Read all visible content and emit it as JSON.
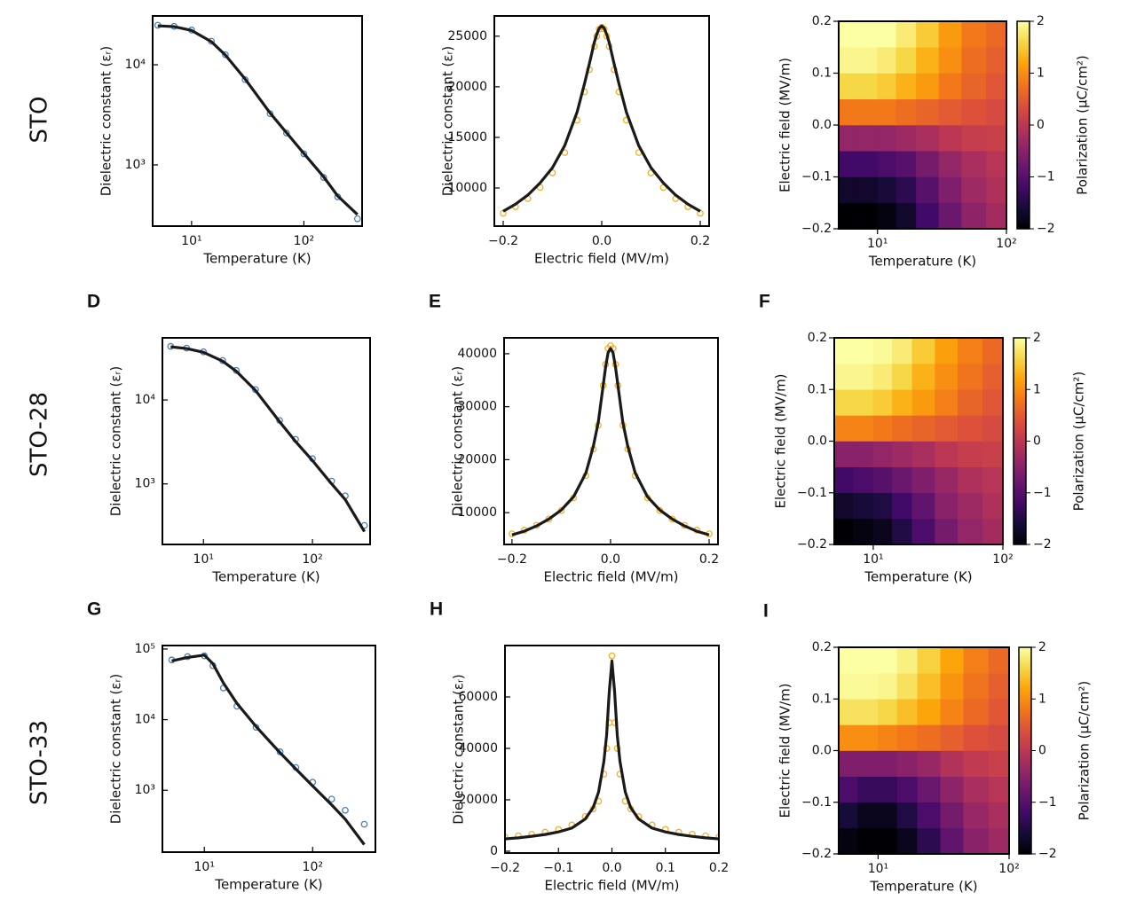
{
  "row_labels": [
    "STO",
    "STO-28",
    "STO-33"
  ],
  "chart_data": [
    {
      "type": "line",
      "xscale": "log",
      "yscale": "log",
      "xlabel": "Temperature (K)",
      "ylabel": "Dielectric constant (εᵣ)",
      "x": [
        5,
        7,
        10,
        15,
        20,
        30,
        50,
        70,
        100,
        150,
        200,
        300
      ],
      "series": [
        {
          "style": "markers",
          "color": "#4a7ebb",
          "values": [
            24800,
            24200,
            22200,
            17200,
            12600,
            7100,
            3250,
            2080,
            1290,
            750,
            480,
            290
          ]
        },
        {
          "style": "line",
          "color": "#1a1a1a",
          "values": [
            24500,
            24000,
            22000,
            17000,
            12500,
            7200,
            3300,
            2100,
            1300,
            760,
            490,
            320
          ]
        }
      ],
      "xlim": [
        4.5,
        330
      ],
      "ylim": [
        245,
        30700
      ],
      "xticks": [
        {
          "value": 10,
          "label": "10¹"
        },
        {
          "value": 100,
          "label": "10²"
        }
      ],
      "yticks": [
        {
          "value": 1000,
          "label": "10³"
        },
        {
          "value": 10000,
          "label": "10⁴"
        }
      ]
    },
    {
      "type": "line",
      "xlabel": "Electric field (MV/m)",
      "ylabel": "Dielectric constant (εᵣ)",
      "x": [
        -0.2,
        -0.175,
        -0.15,
        -0.125,
        -0.1,
        -0.075,
        -0.05,
        -0.035,
        -0.025,
        -0.015,
        -0.01,
        -0.005,
        0,
        0.005,
        0.01,
        0.015,
        0.025,
        0.035,
        0.05,
        0.075,
        0.1,
        0.125,
        0.15,
        0.175,
        0.2
      ],
      "series": [
        {
          "style": "markers",
          "color": "#f5b022",
          "values": [
            7500,
            8150,
            8950,
            10050,
            11500,
            13500,
            16700,
            19500,
            21700,
            24000,
            25000,
            25700,
            25900,
            25700,
            25000,
            24000,
            21700,
            19500,
            16700,
            13500,
            11500,
            10050,
            8950,
            8150,
            7500
          ]
        },
        {
          "style": "line",
          "color": "#1a1a1a",
          "values": [
            7700,
            8400,
            9300,
            10500,
            12000,
            14200,
            17500,
            20300,
            22300,
            24400,
            25200,
            25800,
            26000,
            25800,
            25200,
            24400,
            22300,
            20300,
            17500,
            14200,
            12000,
            10500,
            9300,
            8400,
            7700
          ]
        }
      ],
      "xlim": [
        -0.218,
        0.218
      ],
      "ylim": [
        6230,
        27000
      ],
      "xticks": [
        {
          "value": -0.2,
          "label": "−0.2"
        },
        {
          "value": 0,
          "label": "0.0"
        },
        0.2
      ],
      "yticks": [
        10000,
        15000,
        20000,
        25000
      ]
    },
    {
      "type": "heatmap",
      "xscale": "log",
      "colormap": "inferno",
      "xlabel": "Temperature (K)",
      "ylabel": "Electric field (MV/m)",
      "colorbar_label": "Polarization (μC/cm²)",
      "xbins": [
        5,
        7,
        10,
        14,
        20,
        30,
        45,
        70,
        100
      ],
      "ybins": [
        -0.2,
        -0.15,
        -0.1,
        -0.05,
        0,
        0.05,
        0.1,
        0.15,
        0.2
      ],
      "z": [
        [
          -2.0,
          -2.0,
          -1.9,
          -1.7,
          -1.2,
          -0.8,
          -0.45,
          -0.25
        ],
        [
          -1.7,
          -1.7,
          -1.6,
          -1.4,
          -1.0,
          -0.6,
          -0.3,
          -0.15
        ],
        [
          -1.2,
          -1.2,
          -1.1,
          -1.0,
          -0.7,
          -0.4,
          -0.2,
          -0.05
        ],
        [
          -0.4,
          -0.4,
          -0.4,
          -0.3,
          -0.2,
          0,
          0.1,
          0.15
        ],
        [
          0.8,
          0.8,
          0.8,
          0.7,
          0.6,
          0.5,
          0.4,
          0.3
        ],
        [
          1.6,
          1.6,
          1.5,
          1.3,
          1.1,
          0.8,
          0.6,
          0.45
        ],
        [
          1.9,
          1.9,
          1.8,
          1.6,
          1.3,
          1.0,
          0.7,
          0.55
        ],
        [
          2.0,
          2.0,
          2.0,
          1.8,
          1.5,
          1.1,
          0.8,
          0.65
        ]
      ],
      "xlim": [
        5,
        100
      ],
      "ylim": [
        -0.2,
        0.2
      ],
      "zlim": [
        -2,
        2
      ],
      "xticks": [
        {
          "value": 10,
          "label": "10¹"
        },
        {
          "value": 100,
          "label": "10²"
        }
      ],
      "yticks": [
        {
          "value": -0.2,
          "label": "−0.2"
        },
        {
          "value": -0.1,
          "label": "−0.1"
        },
        {
          "value": 0,
          "label": "0.0"
        },
        0.1,
        0.2
      ],
      "zticks": [
        {
          "value": -2,
          "label": "−2"
        },
        {
          "value": -1,
          "label": "−1"
        },
        0,
        1,
        2
      ]
    },
    {
      "type": "line",
      "panel": "D",
      "xscale": "log",
      "yscale": "log",
      "xlabel": "Temperature (K)",
      "ylabel": "Dielectric constant (εᵣ)",
      "x": [
        5,
        7,
        10,
        15,
        20,
        30,
        50,
        70,
        100,
        150,
        200,
        300
      ],
      "series": [
        {
          "style": "markers",
          "color": "#4a7ebb",
          "values": [
            43500,
            41500,
            37500,
            29500,
            22500,
            13300,
            5700,
            3400,
            2000,
            1080,
            720,
            320
          ]
        },
        {
          "style": "line",
          "color": "#1a1a1a",
          "values": [
            43000,
            41000,
            37000,
            29000,
            22000,
            13000,
            5500,
            3200,
            1900,
            1000,
            650,
            270
          ]
        }
      ],
      "xlim": [
        4.2,
        338
      ],
      "ylim": [
        190,
        55000
      ],
      "xticks": [
        {
          "value": 10,
          "label": "10¹"
        },
        {
          "value": 100,
          "label": "10²"
        }
      ],
      "yticks": [
        {
          "value": 1000,
          "label": "10³"
        },
        {
          "value": 10000,
          "label": "10⁴"
        }
      ]
    },
    {
      "type": "line",
      "panel": "E",
      "xlabel": "Electric field (MV/m)",
      "ylabel": "Dielectric constant (εᵣ)",
      "x": [
        -0.2,
        -0.175,
        -0.15,
        -0.125,
        -0.1,
        -0.075,
        -0.05,
        -0.035,
        -0.025,
        -0.015,
        -0.01,
        -0.005,
        0,
        0.005,
        0.01,
        0.015,
        0.025,
        0.035,
        0.05,
        0.075,
        0.1,
        0.125,
        0.15,
        0.175,
        0.2
      ],
      "series": [
        {
          "style": "markers",
          "color": "#f5b022",
          "values": [
            6000,
            6700,
            7600,
            8800,
            10400,
            12800,
            17000,
            22000,
            26500,
            34000,
            38000,
            41000,
            41500,
            41000,
            38000,
            34000,
            26500,
            22000,
            17000,
            12800,
            10400,
            8800,
            7600,
            6700,
            6000
          ]
        },
        {
          "style": "line",
          "color": "#1a1a1a",
          "values": [
            5800,
            6500,
            7500,
            8800,
            10500,
            13000,
            17500,
            22500,
            27000,
            34000,
            37500,
            40200,
            41000,
            40200,
            37500,
            34000,
            27000,
            22500,
            17500,
            13000,
            10500,
            8800,
            7500,
            6500,
            5800
          ]
        }
      ],
      "xlim": [
        -0.216,
        0.218
      ],
      "ylim": [
        4000,
        43000
      ],
      "xticks": [
        {
          "value": -0.2,
          "label": "−0.2"
        },
        {
          "value": 0,
          "label": "0.0"
        },
        0.2
      ],
      "yticks": [
        10000,
        20000,
        30000,
        40000
      ]
    },
    {
      "type": "heatmap",
      "panel": "F",
      "xscale": "log",
      "colormap": "inferno",
      "xlabel": "Temperature (K)",
      "ylabel": "Electric field (MV/m)",
      "colorbar_label": "Polarization (μC/cm²)",
      "xbins": [
        5,
        7,
        10,
        14,
        20,
        30,
        45,
        70,
        100
      ],
      "ybins": [
        -0.2,
        -0.15,
        -0.1,
        -0.05,
        0,
        0.05,
        0.1,
        0.15,
        0.2
      ],
      "z": [
        [
          -2.0,
          -1.9,
          -1.8,
          -1.5,
          -1.1,
          -0.7,
          -0.4,
          -0.25
        ],
        [
          -1.7,
          -1.6,
          -1.5,
          -1.2,
          -0.9,
          -0.5,
          -0.3,
          -0.15
        ],
        [
          -1.2,
          -1.1,
          -1.0,
          -0.8,
          -0.6,
          -0.35,
          -0.15,
          -0.05
        ],
        [
          -0.5,
          -0.5,
          -0.4,
          -0.3,
          -0.2,
          0,
          0.1,
          0.15
        ],
        [
          0.9,
          0.9,
          0.8,
          0.7,
          0.6,
          0.5,
          0.4,
          0.3
        ],
        [
          1.6,
          1.6,
          1.5,
          1.3,
          1.1,
          0.85,
          0.6,
          0.45
        ],
        [
          1.9,
          1.9,
          1.8,
          1.6,
          1.3,
          1.0,
          0.75,
          0.55
        ],
        [
          2.0,
          2.0,
          1.95,
          1.8,
          1.5,
          1.15,
          0.85,
          0.65
        ]
      ],
      "xlim": [
        5,
        100
      ],
      "ylim": [
        -0.2,
        0.2
      ],
      "zlim": [
        -2,
        2
      ],
      "xticks": [
        {
          "value": 10,
          "label": "10¹"
        },
        {
          "value": 100,
          "label": "10²"
        }
      ],
      "yticks": [
        {
          "value": -0.2,
          "label": "−0.2"
        },
        {
          "value": -0.1,
          "label": "−0.1"
        },
        {
          "value": 0,
          "label": "0.0"
        },
        0.1,
        0.2
      ],
      "zticks": [
        {
          "value": -2,
          "label": "−2"
        },
        {
          "value": -1,
          "label": "−1"
        },
        0,
        1,
        2
      ]
    },
    {
      "type": "line",
      "panel": "G",
      "xscale": "log",
      "yscale": "log",
      "xlabel": "Temperature (K)",
      "ylabel": "Dielectric constant (εᵣ)",
      "x": [
        5,
        7,
        10,
        12,
        15,
        20,
        30,
        50,
        70,
        100,
        150,
        200,
        300
      ],
      "series": [
        {
          "style": "markers",
          "color": "#4a7ebb",
          "values": [
            70000,
            78000,
            80000,
            58000,
            28000,
            15500,
            7800,
            3500,
            2100,
            1300,
            750,
            520,
            330
          ]
        },
        {
          "style": "line",
          "color": "#1a1a1a",
          "values": [
            68000,
            76000,
            82000,
            62000,
            33000,
            17000,
            8000,
            3400,
            2000,
            1150,
            620,
            390,
            170
          ]
        }
      ],
      "xlim": [
        4.1,
        380
      ],
      "ylim": [
        133,
        112000
      ],
      "xticks": [
        {
          "value": 10,
          "label": "10¹"
        },
        {
          "value": 100,
          "label": "10²"
        }
      ],
      "yticks": [
        {
          "value": 1000,
          "label": "10³"
        },
        {
          "value": 10000,
          "label": "10⁴"
        },
        {
          "value": 100000,
          "label": "10⁵"
        }
      ]
    },
    {
      "type": "line",
      "panel": "H",
      "xlabel": "Electric field (MV/m)",
      "ylabel": "Dielectric constant (εᵣ)",
      "x": [
        -0.2,
        -0.175,
        -0.15,
        -0.125,
        -0.1,
        -0.075,
        -0.05,
        -0.035,
        -0.025,
        -0.015,
        -0.01,
        -0.005,
        0,
        0.005,
        0.01,
        0.015,
        0.025,
        0.035,
        0.05,
        0.075,
        0.1,
        0.125,
        0.15,
        0.175,
        0.2
      ],
      "series": [
        {
          "style": "markers",
          "color": "#f5b022",
          "values": [
            5500,
            6000,
            6600,
            7400,
            8500,
            10200,
            13500,
            16500,
            19500,
            30000,
            40000,
            50000,
            76000,
            50000,
            40000,
            30000,
            19500,
            16500,
            13500,
            10200,
            8500,
            7400,
            6600,
            6000,
            5500
          ]
        },
        {
          "style": "line",
          "color": "#1a1a1a",
          "values": [
            4800,
            5200,
            5800,
            6500,
            7500,
            9000,
            12500,
            17000,
            23000,
            35000,
            45000,
            62000,
            74000,
            62000,
            45000,
            35000,
            23000,
            17000,
            12500,
            9000,
            7500,
            6500,
            5800,
            5200,
            4800
          ]
        }
      ],
      "xlim": [
        -0.2,
        0.2
      ],
      "ylim": [
        -700,
        80000
      ],
      "xticks": [
        {
          "value": -0.2,
          "label": "−0.2"
        },
        {
          "value": -0.1,
          "label": "−0.1"
        },
        {
          "value": 0,
          "label": "0.0"
        },
        0.1,
        0.2
      ],
      "yticks": [
        0,
        20000,
        40000,
        60000
      ]
    },
    {
      "type": "heatmap",
      "panel": "I",
      "xscale": "log",
      "colormap": "inferno",
      "xlabel": "Temperature (K)",
      "ylabel": "Electric field (MV/m)",
      "colorbar_label": "Polarization (μC/cm²)",
      "xbins": [
        5,
        7,
        10,
        14,
        20,
        30,
        45,
        70,
        100
      ],
      "ybins": [
        -0.2,
        -0.15,
        -0.1,
        -0.05,
        0,
        0.05,
        0.1,
        0.15,
        0.2
      ],
      "z": [
        [
          -1.9,
          -2.0,
          -2.0,
          -1.8,
          -1.4,
          -0.9,
          -0.5,
          -0.3
        ],
        [
          -1.6,
          -1.8,
          -1.8,
          -1.5,
          -1.1,
          -0.7,
          -0.35,
          -0.2
        ],
        [
          -1.1,
          -1.3,
          -1.3,
          -1.1,
          -0.8,
          -0.45,
          -0.2,
          -0.05
        ],
        [
          -0.6,
          -0.6,
          -0.6,
          -0.5,
          -0.35,
          -0.1,
          0.05,
          0.15
        ],
        [
          1.0,
          1.0,
          0.9,
          0.8,
          0.7,
          0.55,
          0.4,
          0.3
        ],
        [
          1.7,
          1.7,
          1.6,
          1.4,
          1.2,
          0.9,
          0.65,
          0.45
        ],
        [
          1.95,
          1.95,
          1.9,
          1.7,
          1.4,
          1.05,
          0.75,
          0.55
        ],
        [
          2.0,
          2.0,
          2.0,
          1.85,
          1.55,
          1.2,
          0.85,
          0.65
        ]
      ],
      "xlim": [
        5,
        100
      ],
      "ylim": [
        -0.2,
        0.2
      ],
      "zlim": [
        -2,
        2
      ],
      "xticks": [
        {
          "value": 10,
          "label": "10¹"
        },
        {
          "value": 100,
          "label": "10²"
        }
      ],
      "yticks": [
        {
          "value": -0.2,
          "label": "−0.2"
        },
        {
          "value": -0.1,
          "label": "−0.1"
        },
        {
          "value": 0,
          "label": "0.0"
        },
        0.1,
        0.2
      ],
      "zticks": [
        {
          "value": -2,
          "label": "−2"
        },
        {
          "value": -1,
          "label": "−1"
        },
        0,
        1,
        2
      ]
    }
  ]
}
